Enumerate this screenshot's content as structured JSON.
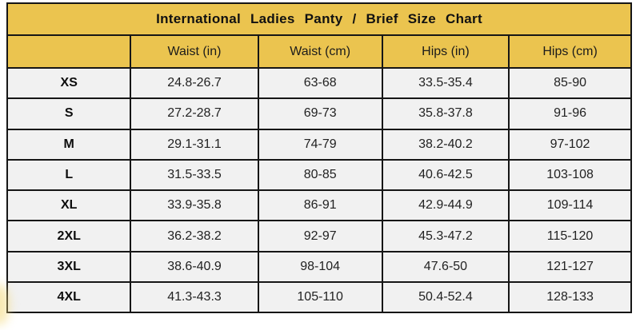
{
  "colors": {
    "header_gold": "#ebc44f",
    "row_background": "#f1f1f1",
    "grid_border": "#161616",
    "text": "#222222"
  },
  "chart_data": {
    "type": "table",
    "title": "International Ladies Panty / Brief Size Chart",
    "columns": [
      "",
      "Waist (in)",
      "Waist (cm)",
      "Hips (in)",
      "Hips (cm)"
    ],
    "rows": [
      [
        "XS",
        "24.8-26.7",
        "63-68",
        "33.5-35.4",
        "85-90"
      ],
      [
        "S",
        "27.2-28.7",
        "69-73",
        "35.8-37.8",
        "91-96"
      ],
      [
        "M",
        "29.1-31.1",
        "74-79",
        "38.2-40.2",
        "97-102"
      ],
      [
        "L",
        "31.5-33.5",
        "80-85",
        "40.6-42.5",
        "103-108"
      ],
      [
        "XL",
        "33.9-35.8",
        "86-91",
        "42.9-44.9",
        "109-114"
      ],
      [
        "2XL",
        "36.2-38.2",
        "92-97",
        "45.3-47.2",
        "115-120"
      ],
      [
        "3XL",
        "38.6-40.9",
        "98-104",
        "47.6-50",
        "121-127"
      ],
      [
        "4XL",
        "41.3-43.3",
        "105-110",
        "50.4-52.4",
        "128-133"
      ]
    ],
    "layout": {
      "grid": "on",
      "title_position": "top-merged-row",
      "first_column_role": "size-label"
    }
  }
}
